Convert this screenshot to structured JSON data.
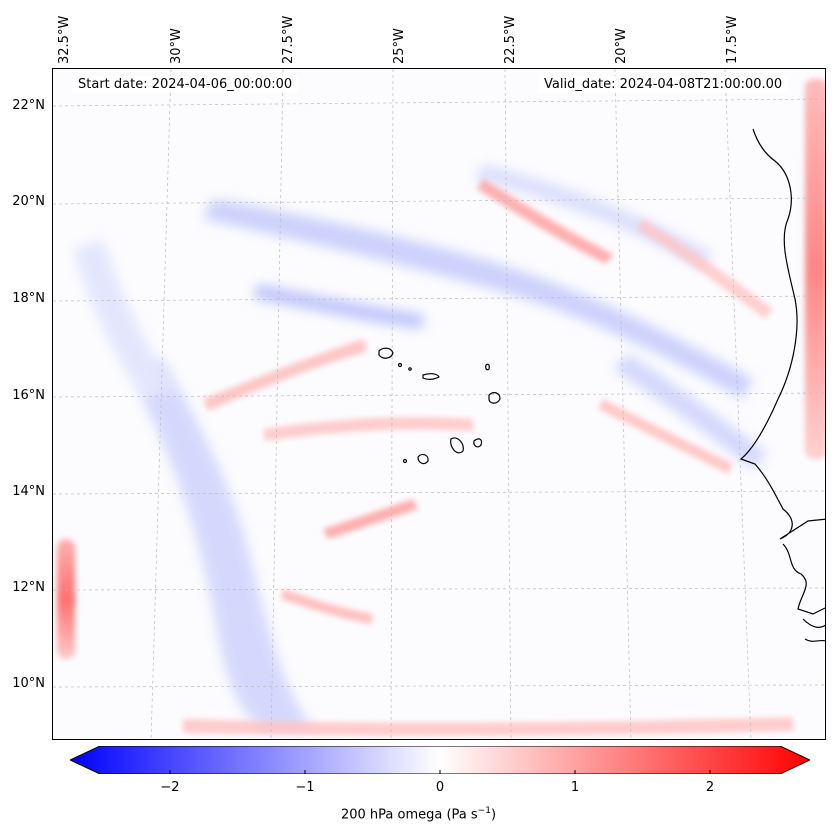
{
  "map": {
    "start_date": "Start date: 2024-04-06_00:00:00",
    "valid_date": "Valid_date: 2024-04-08T21:00:00.00",
    "longitude_labels": [
      "32.5°W",
      "30°W",
      "27.5°W",
      "25°W",
      "22.5°W",
      "20°W",
      "17.5°W"
    ],
    "latitude_labels": [
      "22°N",
      "20°N",
      "18°N",
      "16°N",
      "14°N",
      "12°N",
      "10°N"
    ],
    "colors": {
      "negative": "#0000ff",
      "neutral": "#ffffff",
      "positive": "#ff0000",
      "coast": "#000000",
      "grid": "#bbbbbb"
    }
  },
  "colorbar": {
    "ticks": [
      "−2",
      "−1",
      "0",
      "1",
      "2"
    ],
    "label": "200 hPa omega (Pa s",
    "label_sup": "−1",
    "label_end": ")",
    "range": [
      -2.5,
      2.5
    ]
  }
}
